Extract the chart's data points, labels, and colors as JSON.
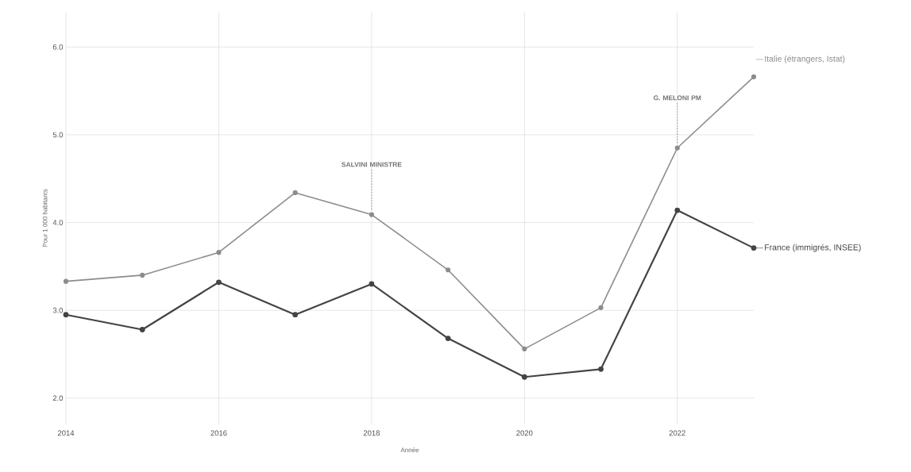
{
  "chart_data": {
    "type": "line",
    "xlabel": "Année",
    "ylabel": "Pour 1 000 habitants",
    "x": [
      2014,
      2015,
      2016,
      2017,
      2018,
      2019,
      2020,
      2021,
      2022,
      2023
    ],
    "series": [
      {
        "name": "Italie (étrangers, Istat)",
        "color": "#8c8c8c",
        "values": [
          3.33,
          3.4,
          3.66,
          4.34,
          4.09,
          3.46,
          2.56,
          3.03,
          4.85,
          5.66
        ]
      },
      {
        "name": "France (immigrés, INSEE)",
        "color": "#444444",
        "values": [
          2.95,
          2.78,
          3.32,
          2.95,
          3.3,
          2.68,
          2.24,
          2.33,
          4.14,
          3.71
        ]
      }
    ],
    "xlim": [
      2014,
      2023
    ],
    "xticks": [
      2014,
      2016,
      2018,
      2020,
      2022
    ],
    "ylim": [
      1.7,
      6.4
    ],
    "yticks": [
      {
        "value": 2,
        "label": "2.0"
      },
      {
        "value": 3,
        "label": "3.0"
      },
      {
        "value": 4,
        "label": "4.0"
      },
      {
        "value": 5,
        "label": "5.0"
      },
      {
        "value": 6,
        "label": "6.0"
      }
    ],
    "annotations": [
      {
        "text": "SALVINI MINISTRE",
        "x": 2018,
        "y": 4.09
      },
      {
        "text": "G. MELONI PM",
        "x": 2022,
        "y": 4.85
      }
    ],
    "grid": true,
    "legend": "right",
    "marker": "circle",
    "line_style": "solid"
  }
}
